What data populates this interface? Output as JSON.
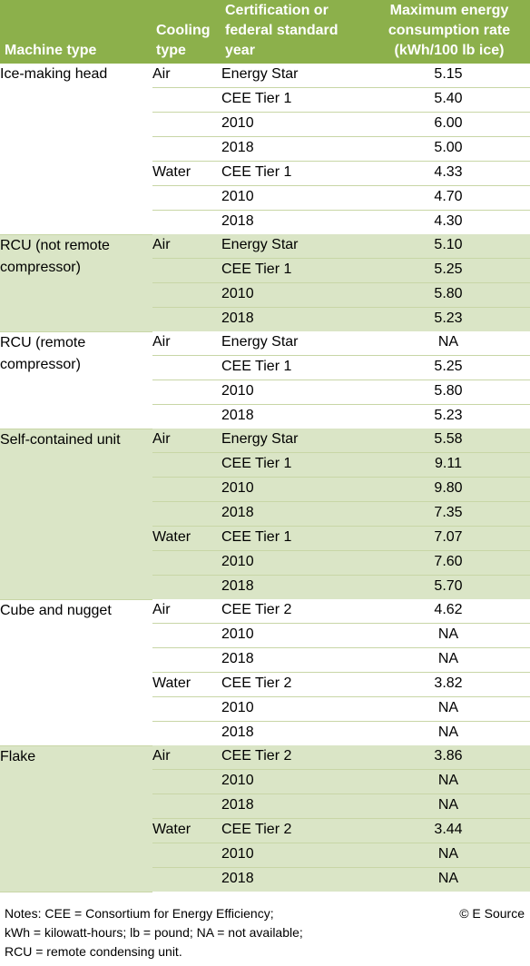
{
  "header": {
    "machine_type": "Machine type",
    "cooling_type_1": "Cooling",
    "cooling_type_2": "type",
    "cert_1": "Certification or",
    "cert_2": "federal standard",
    "cert_3": "year",
    "max_1": "Maximum energy",
    "max_2": "consumption rate",
    "max_3": "(kWh/100 lb ice)"
  },
  "groups": [
    {
      "machine_lines": [
        "Ice-making head"
      ],
      "shaded": false,
      "rows": [
        {
          "cooling": "Air",
          "cert": "Energy Star",
          "value": "5.15"
        },
        {
          "cooling": "",
          "cert": "CEE Tier 1",
          "value": "5.40"
        },
        {
          "cooling": "",
          "cert": "2010",
          "value": "6.00"
        },
        {
          "cooling": "",
          "cert": "2018",
          "value": "5.00"
        },
        {
          "cooling": "Water",
          "cert": "CEE Tier 1",
          "value": "4.33"
        },
        {
          "cooling": "",
          "cert": "2010",
          "value": "4.70"
        },
        {
          "cooling": "",
          "cert": "2018",
          "value": "4.30"
        }
      ]
    },
    {
      "machine_lines": [
        "RCU (not remote",
        "compressor)"
      ],
      "shaded": true,
      "rows": [
        {
          "cooling": "Air",
          "cert": "Energy Star",
          "value": "5.10"
        },
        {
          "cooling": "",
          "cert": "CEE Tier 1",
          "value": "5.25"
        },
        {
          "cooling": "",
          "cert": "2010",
          "value": "5.80"
        },
        {
          "cooling": "",
          "cert": "2018",
          "value": "5.23"
        }
      ]
    },
    {
      "machine_lines": [
        "RCU (remote",
        "compressor)"
      ],
      "shaded": false,
      "rows": [
        {
          "cooling": "Air",
          "cert": "Energy Star",
          "value": "NA"
        },
        {
          "cooling": "",
          "cert": "CEE Tier 1",
          "value": "5.25"
        },
        {
          "cooling": "",
          "cert": "2010",
          "value": "5.80"
        },
        {
          "cooling": "",
          "cert": "2018",
          "value": "5.23"
        }
      ]
    },
    {
      "machine_lines": [
        "Self-contained unit"
      ],
      "shaded": true,
      "rows": [
        {
          "cooling": "Air",
          "cert": "Energy Star",
          "value": "5.58"
        },
        {
          "cooling": "",
          "cert": "CEE Tier 1",
          "value": "9.11"
        },
        {
          "cooling": "",
          "cert": "2010",
          "value": "9.80"
        },
        {
          "cooling": "",
          "cert": "2018",
          "value": "7.35"
        },
        {
          "cooling": "Water",
          "cert": "CEE Tier 1",
          "value": "7.07"
        },
        {
          "cooling": "",
          "cert": "2010",
          "value": "7.60"
        },
        {
          "cooling": "",
          "cert": "2018",
          "value": "5.70"
        }
      ]
    },
    {
      "machine_lines": [
        "Cube and nugget"
      ],
      "shaded": false,
      "rows": [
        {
          "cooling": "Air",
          "cert": "CEE Tier 2",
          "value": "4.62"
        },
        {
          "cooling": "",
          "cert": "2010",
          "value": "NA"
        },
        {
          "cooling": "",
          "cert": "2018",
          "value": "NA"
        },
        {
          "cooling": "Water",
          "cert": "CEE Tier 2",
          "value": "3.82"
        },
        {
          "cooling": "",
          "cert": "2010",
          "value": "NA"
        },
        {
          "cooling": "",
          "cert": "2018",
          "value": "NA"
        }
      ]
    },
    {
      "machine_lines": [
        "Flake"
      ],
      "shaded": true,
      "rows": [
        {
          "cooling": "Air",
          "cert": "CEE Tier 2",
          "value": "3.86"
        },
        {
          "cooling": "",
          "cert": "2010",
          "value": "NA"
        },
        {
          "cooling": "",
          "cert": "2018",
          "value": "NA"
        },
        {
          "cooling": "Water",
          "cert": "CEE Tier 2",
          "value": "3.44"
        },
        {
          "cooling": "",
          "cert": "2010",
          "value": "NA"
        },
        {
          "cooling": "",
          "cert": "2018",
          "value": "NA"
        }
      ]
    }
  ],
  "notes": {
    "line1": "Notes: CEE = Consortium for Energy Efficiency;",
    "line2": "kWh = kilowatt-hours; lb = pound; NA = not available;",
    "line3": "RCU = remote condensing unit."
  },
  "copyright": "© E Source",
  "colors": {
    "header_bg": "#8cb04b",
    "shade_bg": "#dae5c6",
    "rule": "#c8d6a6"
  }
}
